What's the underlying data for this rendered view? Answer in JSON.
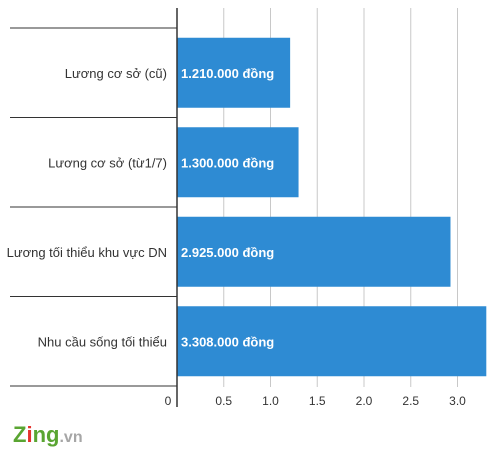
{
  "chart_data": {
    "type": "bar",
    "orientation": "horizontal",
    "title": "",
    "xlabel": "",
    "ylabel": "",
    "categories": [
      "Lương cơ sở (cũ)",
      "Lương cơ sở (từ1/7)",
      "Lương tối thiểu khu vực DN",
      "Nhu cầu sống tối thiểu"
    ],
    "values": [
      1.21,
      1.3,
      2.925,
      3.308
    ],
    "data_labels": [
      "1.210.000 đồng",
      "1.300.000 đồng",
      "2.925.000 đồng",
      "3.308.000 đồng"
    ],
    "xlim": [
      0,
      3.4
    ],
    "xticks": [
      0,
      0.5,
      1.0,
      1.5,
      2.0,
      2.5,
      3.0
    ],
    "xtick_labels": [
      "0",
      "0.5",
      "1.0",
      "1.5",
      "2.0",
      "2.5",
      "3.0"
    ],
    "grid": true,
    "legend": "none",
    "bar_color": "#2e8bd3"
  },
  "logo": {
    "z": "Z",
    "i": "i",
    "ng": "ng",
    "suffix": ".vn"
  },
  "colors": {
    "logo_green": "#5aa532",
    "logo_red": "#e5322d",
    "logo_gray": "#a6a6a6",
    "grid": "#c8c8c8",
    "axis": "#333333"
  }
}
